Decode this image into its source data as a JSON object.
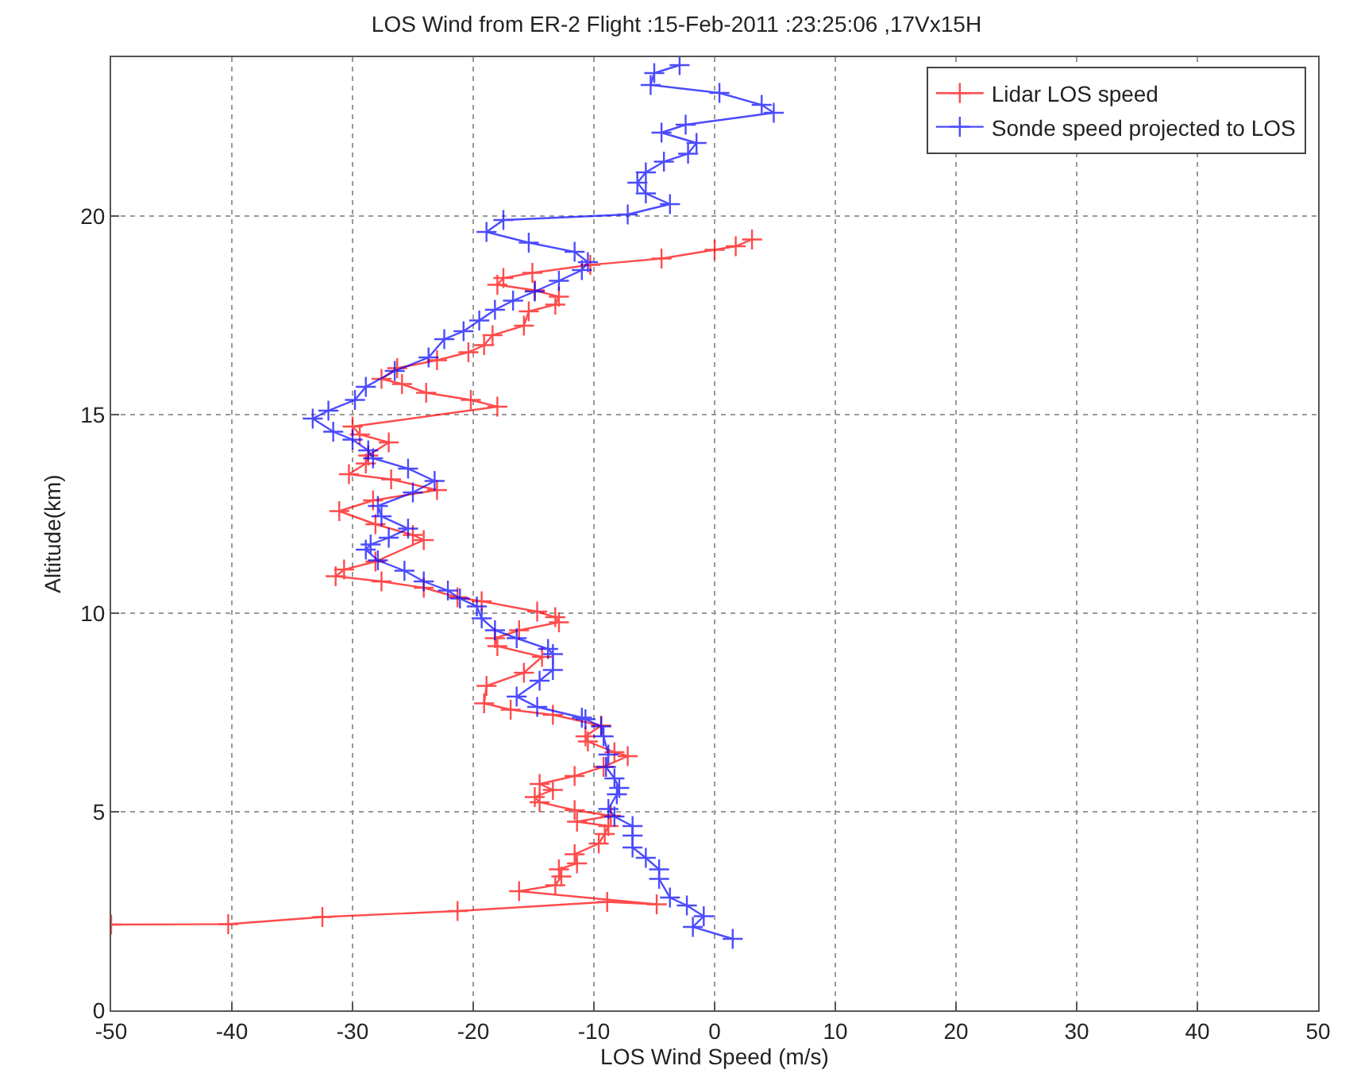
{
  "chart_data": {
    "type": "line",
    "title": "LOS Wind from ER-2 Flight :15-Feb-2011 :23:25:06 ,17Vx15H",
    "xlabel": "LOS Wind Speed (m/s)",
    "ylabel": "Altitude(km)",
    "xlim": [
      -50,
      50
    ],
    "xticks": [
      -50,
      -40,
      -30,
      -20,
      -10,
      0,
      10,
      20,
      30,
      40,
      50
    ],
    "ylim": [
      0,
      24
    ],
    "yticks": [
      0,
      5,
      10,
      15,
      20
    ],
    "grid": true,
    "legend": "top right",
    "marker": "cross",
    "line_style": "solid",
    "series": [
      {
        "name": "Lidar LOS speed",
        "color": "#ff0000",
        "x": [
          -50,
          -40.3,
          -32.5,
          -21.3,
          -8.9,
          -4.8,
          -16.2,
          -13.2,
          -12.7,
          -12.9,
          -11.4,
          -11.6,
          -9.6,
          -9.1,
          -8.8,
          -11.4,
          -8.6,
          -11.6,
          -14.5,
          -14.9,
          -13.4,
          -14.5,
          -11.6,
          -9.2,
          -7.2,
          -8.3,
          -10.5,
          -10.7,
          -9.4,
          -13.4,
          -16.9,
          -19.1,
          -18.9,
          -15.8,
          -14.3,
          -18.0,
          -18.2,
          -16.2,
          -12.9,
          -13.2,
          -14.7,
          -19.3,
          -21.3,
          -24.1,
          -27.6,
          -31.4,
          -30.7,
          -28.1,
          -24.1,
          -25.0,
          -28.1,
          -31.1,
          -28.3,
          -23.0,
          -26.8,
          -30.3,
          -28.9,
          -28.7,
          -27.0,
          -29.4,
          -30.0,
          -18.0,
          -20.2,
          -23.9,
          -25.9,
          -27.6,
          -26.3,
          -23.0,
          -20.4,
          -19.1,
          -18.4,
          -15.8,
          -15.4,
          -13.2,
          -12.9,
          -14.9,
          -18.0,
          -17.5,
          -15.1,
          -10.3,
          -4.4,
          0.0,
          1.75,
          3.1
        ],
        "values": [
          2.16,
          2.17,
          2.35,
          2.5,
          2.73,
          2.67,
          3.0,
          3.15,
          3.37,
          3.55,
          3.7,
          3.93,
          4.2,
          4.44,
          4.64,
          4.75,
          4.9,
          5.04,
          5.24,
          5.37,
          5.55,
          5.7,
          5.9,
          6.13,
          6.4,
          6.5,
          6.77,
          6.9,
          7.17,
          7.44,
          7.57,
          7.73,
          8.17,
          8.5,
          8.9,
          9.17,
          9.37,
          9.57,
          9.77,
          9.9,
          10.04,
          10.3,
          10.4,
          10.64,
          10.8,
          10.93,
          11.1,
          11.3,
          11.84,
          11.97,
          12.24,
          12.57,
          12.84,
          13.1,
          13.37,
          13.5,
          13.77,
          13.97,
          14.3,
          14.5,
          14.7,
          15.2,
          15.37,
          15.55,
          15.77,
          15.9,
          16.17,
          16.37,
          16.57,
          16.75,
          17.0,
          17.24,
          17.6,
          17.77,
          17.97,
          18.13,
          18.27,
          18.44,
          18.57,
          18.77,
          18.93,
          19.15,
          19.24,
          19.41
        ]
      },
      {
        "name": "Sonde speed projected to LOS",
        "color": "#0000ff",
        "x": [
          1.5,
          -1.8,
          -0.9,
          -2.3,
          -3.7,
          -4.6,
          -4.6,
          -5.7,
          -6.8,
          -6.8,
          -6.8,
          -8.3,
          -8.8,
          -8.1,
          -7.9,
          -8.3,
          -9.0,
          -8.8,
          -9.2,
          -9.4,
          -10.7,
          -11.0,
          -14.7,
          -16.4,
          -14.5,
          -13.4,
          -13.4,
          -13.8,
          -16.4,
          -18.2,
          -19.3,
          -19.7,
          -21.1,
          -22.1,
          -24.1,
          -25.7,
          -27.9,
          -28.9,
          -28.5,
          -27.0,
          -25.4,
          -27.6,
          -27.9,
          -25.0,
          -23.2,
          -25.4,
          -28.3,
          -28.7,
          -30.0,
          -31.6,
          -33.3,
          -32.0,
          -29.8,
          -28.9,
          -26.5,
          -23.7,
          -22.4,
          -20.8,
          -19.5,
          -18.2,
          -16.7,
          -14.9,
          -12.9,
          -11.0,
          -10.5,
          -11.6,
          -15.4,
          -18.9,
          -17.5,
          -7.2,
          -3.7,
          -5.7,
          -6.4,
          -5.7,
          -4.2,
          -2.2,
          -1.5,
          -4.4,
          -2.4,
          4.9,
          3.9,
          0.4,
          -5.3,
          -5.0,
          -2.9
        ],
        "values": [
          1.8,
          2.1,
          2.37,
          2.64,
          2.84,
          3.31,
          3.55,
          3.84,
          4.1,
          4.4,
          4.64,
          4.88,
          5.07,
          5.44,
          5.6,
          5.84,
          6.13,
          6.44,
          6.9,
          7.15,
          7.33,
          7.37,
          7.64,
          7.9,
          8.3,
          8.57,
          8.97,
          9.1,
          9.37,
          9.57,
          9.87,
          10.17,
          10.37,
          10.57,
          10.8,
          11.07,
          11.33,
          11.6,
          11.73,
          11.9,
          12.13,
          12.44,
          12.7,
          13.04,
          13.33,
          13.64,
          13.9,
          14.1,
          14.37,
          14.57,
          14.9,
          15.1,
          15.37,
          15.7,
          16.1,
          16.44,
          16.9,
          17.1,
          17.37,
          17.64,
          17.87,
          18.1,
          18.37,
          18.64,
          18.84,
          19.1,
          19.33,
          19.6,
          19.9,
          20.04,
          20.3,
          20.57,
          20.84,
          21.1,
          21.37,
          21.57,
          21.84,
          22.1,
          22.3,
          22.6,
          22.8,
          23.1,
          23.3,
          23.6,
          23.8
        ]
      }
    ]
  }
}
